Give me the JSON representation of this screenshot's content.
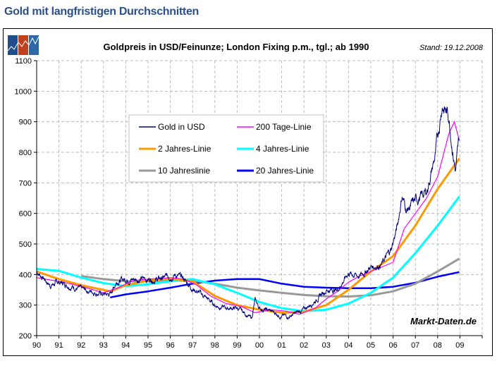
{
  "page_heading": "Gold mit langfristigen Durchschnitten",
  "chart_data": {
    "type": "line",
    "title": "Goldpreis in USD/Feinunze; London Fixing p.m., tgl.; ab 1990",
    "date_note": "Stand: 19.12.2008",
    "watermark": "Markt-Daten.de",
    "xlabel": "",
    "ylabel": "",
    "xlim": [
      1990,
      2010
    ],
    "ylim": [
      200,
      1100
    ],
    "y_ticks": [
      200,
      300,
      400,
      500,
      600,
      700,
      800,
      900,
      1000,
      1100
    ],
    "x_tick_labels": [
      "90",
      "91",
      "92",
      "93",
      "94",
      "95",
      "96",
      "97",
      "98",
      "99",
      "00",
      "01",
      "02",
      "03",
      "04",
      "05",
      "06",
      "07",
      "08",
      "09"
    ],
    "grid": true,
    "legend_position": "upper-left-center",
    "series": [
      {
        "name": "Gold in USD",
        "color": "#000080",
        "x": [
          1990,
          1990.3,
          1990.6,
          1991,
          1991.5,
          1992,
          1992.5,
          1993,
          1993.3,
          1993.6,
          1994,
          1994.5,
          1995,
          1995.5,
          1996,
          1996.2,
          1996.6,
          1997,
          1997.5,
          1998,
          1998.5,
          1999,
          1999.4,
          1999.65,
          1999.8,
          2000,
          2000.5,
          2001,
          2001.3,
          2001.7,
          2002,
          2002.5,
          2003,
          2003.5,
          2004,
          2004.5,
          2005,
          2005.5,
          2005.9,
          2006.2,
          2006.4,
          2006.6,
          2007,
          2007.5,
          2007.9,
          2008.2,
          2008.5,
          2008.8,
          2008.97
        ],
        "y": [
          410,
          390,
          365,
          375,
          365,
          350,
          345,
          335,
          335,
          380,
          385,
          385,
          385,
          385,
          395,
          400,
          385,
          355,
          330,
          300,
          290,
          290,
          270,
          255,
          315,
          290,
          280,
          265,
          262,
          275,
          285,
          315,
          350,
          350,
          405,
          395,
          425,
          435,
          480,
          560,
          660,
          610,
          640,
          670,
          790,
          960,
          920,
          740,
          840
        ]
      },
      {
        "name": "200 Tage-Linie",
        "color": "#ff00ff",
        "x": [
          1990,
          1990.8,
          1991.5,
          1992.3,
          1993,
          1993.6,
          1994.3,
          1995,
          1996,
          1996.6,
          1997.2,
          1997.8,
          1998.5,
          1999.2,
          1999.8,
          2000.5,
          2001.2,
          2001.8,
          2002.5,
          2003,
          2003.5,
          2004,
          2004.5,
          2005,
          2005.5,
          2006,
          2006.5,
          2007,
          2007.5,
          2008,
          2008.5,
          2008.75,
          2008.97
        ],
        "y": [
          390,
          380,
          370,
          355,
          340,
          355,
          380,
          385,
          390,
          385,
          365,
          330,
          305,
          295,
          275,
          285,
          280,
          270,
          290,
          320,
          345,
          375,
          395,
          410,
          425,
          440,
          550,
          600,
          650,
          720,
          860,
          900,
          840
        ]
      },
      {
        "name": "2 Jahres-Linie",
        "color": "#ff9900",
        "x": [
          1990,
          1991,
          1992,
          1993.3,
          1994,
          1995,
          1996,
          1997,
          1998,
          1999,
          2000,
          2001,
          2002,
          2003,
          2004,
          2005,
          2006,
          2007,
          2008,
          2008.97
        ],
        "y": [
          410,
          385,
          365,
          345,
          365,
          380,
          385,
          378,
          330,
          300,
          285,
          275,
          278,
          300,
          350,
          410,
          460,
          560,
          680,
          780
        ]
      },
      {
        "name": "4 Jahres-Linie",
        "color": "#00ffff",
        "x": [
          1990,
          1991,
          1992,
          1993,
          1994,
          1995,
          1996,
          1997,
          1998,
          1999,
          2000,
          2001,
          2002,
          2003,
          2004,
          2005,
          2006,
          2007,
          2008,
          2008.97
        ],
        "y": [
          418,
          412,
          390,
          372,
          362,
          368,
          378,
          385,
          368,
          340,
          310,
          290,
          280,
          285,
          305,
          340,
          390,
          470,
          560,
          655
        ]
      },
      {
        "name": "10 Jahreslinie",
        "color": "#999999",
        "x": [
          1992,
          1993,
          1994,
          1995,
          1996,
          1997,
          1998,
          1999,
          2000,
          2001,
          2002,
          2003,
          2004,
          2005,
          2006,
          2007,
          2008,
          2008.97
        ],
        "y": [
          395,
          385,
          378,
          378,
          380,
          380,
          370,
          357,
          348,
          340,
          333,
          329,
          328,
          332,
          345,
          370,
          410,
          452
        ]
      },
      {
        "name": "20 Jahres-Linie",
        "color": "#0000ff",
        "x": [
          1993.3,
          1994,
          1995,
          1996,
          1997,
          1998,
          1999,
          2000,
          2001,
          2002,
          2003,
          2004,
          2005,
          2006,
          2007,
          2008,
          2008.97
        ],
        "y": [
          325,
          335,
          345,
          357,
          370,
          380,
          385,
          385,
          370,
          360,
          357,
          355,
          355,
          360,
          373,
          393,
          408
        ]
      }
    ]
  }
}
